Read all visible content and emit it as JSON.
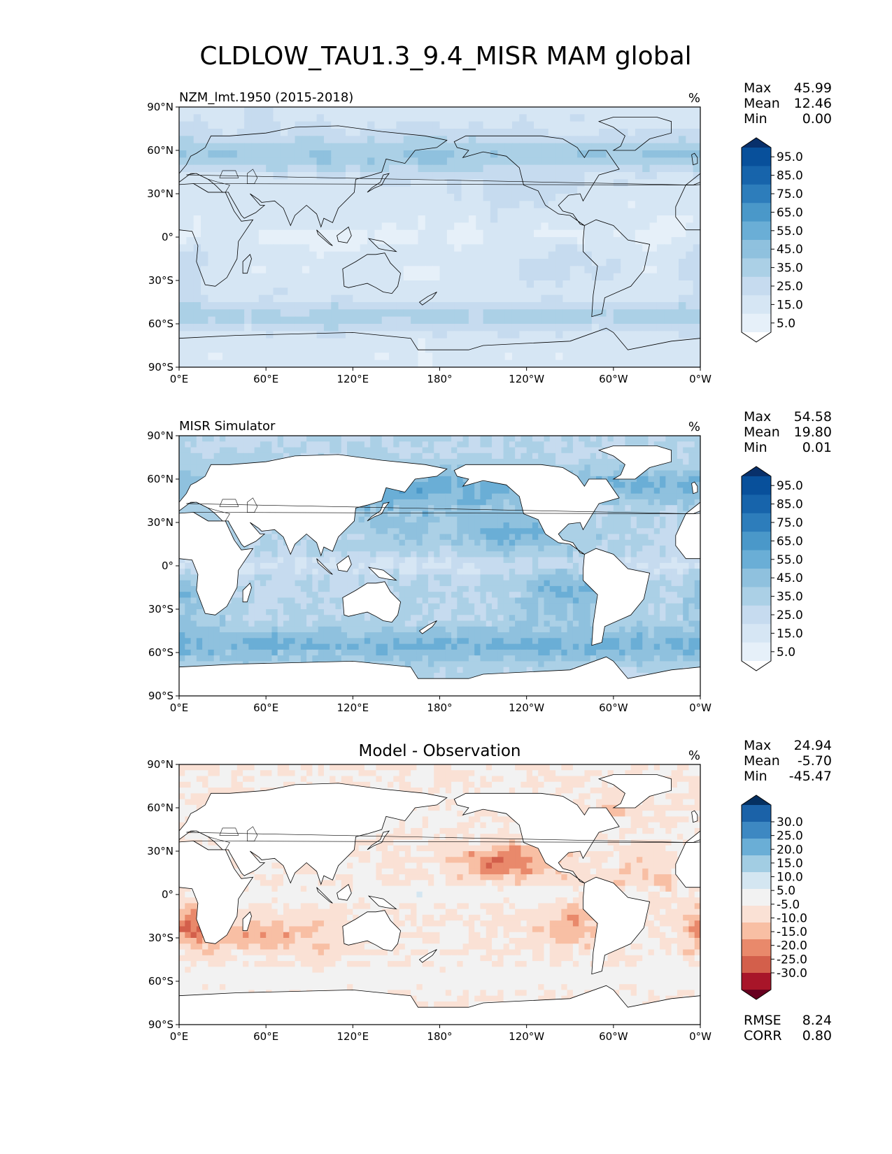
{
  "figure": {
    "title": "CLDLOW_TAU1.3_9.4_MISR MAM global"
  },
  "colors": {
    "blues": [
      "#f7fbff",
      "#e6f0f9",
      "#d6e6f4",
      "#c6dbef",
      "#abd0e6",
      "#8fc1de",
      "#6aaed6",
      "#4a98c9",
      "#2d7dbb",
      "#1764ab",
      "#08509b",
      "#08306b"
    ],
    "diff": [
      "#67001f",
      "#a81529",
      "#d35f4b",
      "#e9896b",
      "#f8bfa4",
      "#fae1d5",
      "#f2f2f2",
      "#d4e6f1",
      "#a2cde3",
      "#6aaed6",
      "#3d88c2",
      "#1b62a8",
      "#053061"
    ],
    "land_line": "#000000"
  },
  "axis_ticks": {
    "y": [
      {
        "value": 90,
        "label": "90°N"
      },
      {
        "value": 60,
        "label": "60°N"
      },
      {
        "value": 30,
        "label": "30°N"
      },
      {
        "value": 0,
        "label": "0°"
      },
      {
        "value": -30,
        "label": "30°S"
      },
      {
        "value": -60,
        "label": "60°S"
      },
      {
        "value": -90,
        "label": "90°S"
      }
    ],
    "x": [
      {
        "value": 0,
        "label": "0°E"
      },
      {
        "value": 60,
        "label": "60°E"
      },
      {
        "value": 120,
        "label": "120°E"
      },
      {
        "value": 180,
        "label": "180°"
      },
      {
        "value": 240,
        "label": "120°W"
      },
      {
        "value": 300,
        "label": "60°W"
      },
      {
        "value": 360,
        "label": "0°W"
      }
    ]
  },
  "chart_data": [
    {
      "type": "heatmap",
      "title": "NZM_lmt.1950 (2015-2018)",
      "units": "%",
      "xlim": [
        0,
        360
      ],
      "ylim": [
        -90,
        90
      ],
      "colormap": "blues",
      "colorbar": {
        "levels": [
          0,
          5,
          10,
          15,
          20,
          25,
          30,
          35,
          40,
          45,
          50,
          55,
          60,
          65,
          70,
          75,
          80,
          85,
          90,
          95,
          100
        ],
        "tick_labels": [
          "95.0",
          "85.0",
          "75.0",
          "65.0",
          "55.0",
          "45.0",
          "35.0",
          "25.0",
          "15.0",
          "5.0"
        ],
        "extend": "both"
      },
      "stats": [
        {
          "label": "Max",
          "value": "45.99"
        },
        {
          "label": "Mean",
          "value": "12.46"
        },
        {
          "label": "Min",
          "value": "0.00"
        }
      ]
    },
    {
      "type": "heatmap",
      "title": "MISR Simulator",
      "units": "%",
      "xlim": [
        0,
        360
      ],
      "ylim": [
        -90,
        90
      ],
      "colormap": "blues",
      "colorbar": {
        "levels": [
          0,
          5,
          10,
          15,
          20,
          25,
          30,
          35,
          40,
          45,
          50,
          55,
          60,
          65,
          70,
          75,
          80,
          85,
          90,
          95,
          100
        ],
        "tick_labels": [
          "95.0",
          "85.0",
          "75.0",
          "65.0",
          "55.0",
          "45.0",
          "35.0",
          "25.0",
          "15.0",
          "5.0"
        ],
        "extend": "both"
      },
      "stats": [
        {
          "label": "Max",
          "value": "54.58"
        },
        {
          "label": "Mean",
          "value": "19.80"
        },
        {
          "label": "Min",
          "value": "0.01"
        }
      ]
    },
    {
      "type": "heatmap",
      "title": "Model - Observation",
      "units": "%",
      "xlim": [
        0,
        360
      ],
      "ylim": [
        -90,
        90
      ],
      "colormap": "diff",
      "colorbar": {
        "levels": [
          -30,
          -25,
          -20,
          -15,
          -10,
          -5,
          5,
          10,
          15,
          20,
          25,
          30
        ],
        "tick_labels": [
          "30.0",
          "25.0",
          "20.0",
          "15.0",
          "10.0",
          "5.0",
          "-5.0",
          "-10.0",
          "-15.0",
          "-20.0",
          "-25.0",
          "-30.0"
        ],
        "extend": "both"
      },
      "stats": [
        {
          "label": "Max",
          "value": "24.94"
        },
        {
          "label": "Mean",
          "value": "-5.70"
        },
        {
          "label": "Min",
          "value": "-45.47"
        }
      ],
      "extra_stats": [
        {
          "label": "RMSE",
          "value": "8.24"
        },
        {
          "label": "CORR",
          "value": "0.80"
        }
      ]
    }
  ]
}
